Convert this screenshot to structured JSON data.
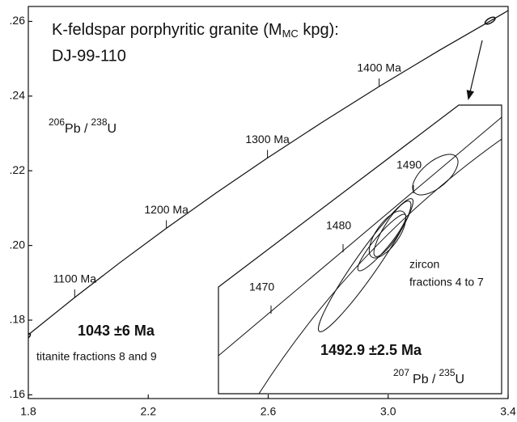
{
  "chart_data": {
    "type": "concordia",
    "title": {
      "text": "K-feldspar porphyritic granite (M",
      "sub": "MC",
      "tail": " kpg):"
    },
    "subtitle": "DJ-99-110",
    "y_label": {
      "sup1": "206",
      "a": "Pb /",
      "sup2": "238",
      "b": "U"
    },
    "x_label": {
      "sup1": "207",
      "a": "Pb /",
      "sup2": "235",
      "b": "U"
    },
    "xlim": [
      1.8,
      3.4
    ],
    "ylim": [
      0.159,
      0.264
    ],
    "xticks": [
      1.8,
      2.2,
      2.6,
      {
        "value": 3.0,
        "label": "3.0"
      },
      3.4
    ],
    "yticks": [
      {
        "value": 0.16,
        "label": ".16"
      },
      {
        "value": 0.18,
        "label": ".18"
      },
      {
        "value": 0.2,
        "label": ".20"
      },
      {
        "value": 0.22,
        "label": ".22"
      },
      {
        "value": 0.24,
        "label": ".24"
      },
      {
        "value": 0.26,
        "label": ".26"
      }
    ],
    "concordia": {
      "x": [
        1.785,
        1.8125,
        1.9546,
        2.1037,
        2.2604,
        2.4249,
        2.5976,
        2.7795,
        2.97,
        3.1705,
        3.3813,
        3.45
      ],
      "y": [
        0.17507,
        0.17689,
        0.18606,
        0.1953,
        0.20459,
        0.21398,
        0.22343,
        0.23296,
        0.24257,
        0.25224,
        0.262,
        0.2653
      ]
    },
    "age_ticks": [
      {
        "value": 1100,
        "label": "1100 Ma",
        "x": 1.9546,
        "y": 0.18606
      },
      {
        "value": 1200,
        "label": "1200 Ma",
        "x": 2.2604,
        "y": 0.20459
      },
      {
        "value": 1300,
        "label": "1300 Ma",
        "x": 2.5976,
        "y": 0.22343
      },
      {
        "value": 1400,
        "label": "1400 Ma",
        "x": 2.97,
        "y": 0.24257
      }
    ],
    "analyses": {
      "x": [
        1.79,
        3.34
      ],
      "y": [
        0.1755,
        0.2602
      ]
    },
    "titanite_age": "1043 ±6 Ma",
    "titanite_note": "titanite fractions 8 and 9",
    "inset": {
      "age_ticks": [
        1470,
        1480,
        1490
      ],
      "zircon_age": "1492.9 ±2.5 Ma",
      "zircon_note": [
        "zircon",
        "fractions 4 to 7"
      ]
    }
  }
}
